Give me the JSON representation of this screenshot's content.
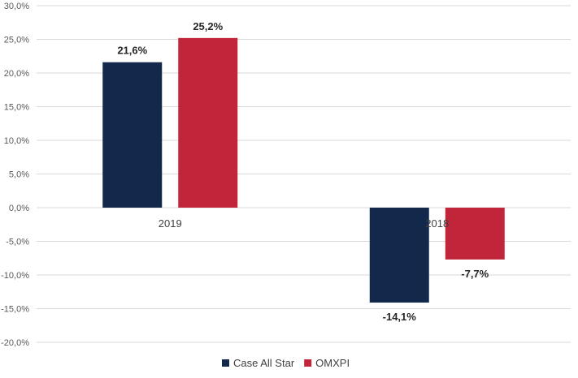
{
  "chart_data": {
    "type": "bar",
    "categories": [
      "2019",
      "2018"
    ],
    "series": [
      {
        "name": "Case All Star",
        "values": [
          21.6,
          -14.1
        ],
        "labels": [
          "21,6%",
          "-14,1%"
        ],
        "color": "#13294b"
      },
      {
        "name": "OMXPI",
        "values": [
          25.2,
          -7.7
        ],
        "labels": [
          "25,2%",
          "-7,7%"
        ],
        "color": "#c1253a"
      }
    ],
    "ylim": [
      -20,
      30
    ],
    "yticks": [
      30,
      25,
      20,
      15,
      10,
      5,
      0,
      -5,
      -10,
      -15,
      -20
    ],
    "ytick_labels": [
      "30,0%",
      "25,0%",
      "20,0%",
      "15,0%",
      "10,0%",
      "5,0%",
      "0,0%",
      "-5,0%",
      "-10,0%",
      "-15,0%",
      "-20,0%"
    ],
    "grid": true,
    "legend": "bottom-center",
    "gridline_color": "#d9d9d9"
  }
}
